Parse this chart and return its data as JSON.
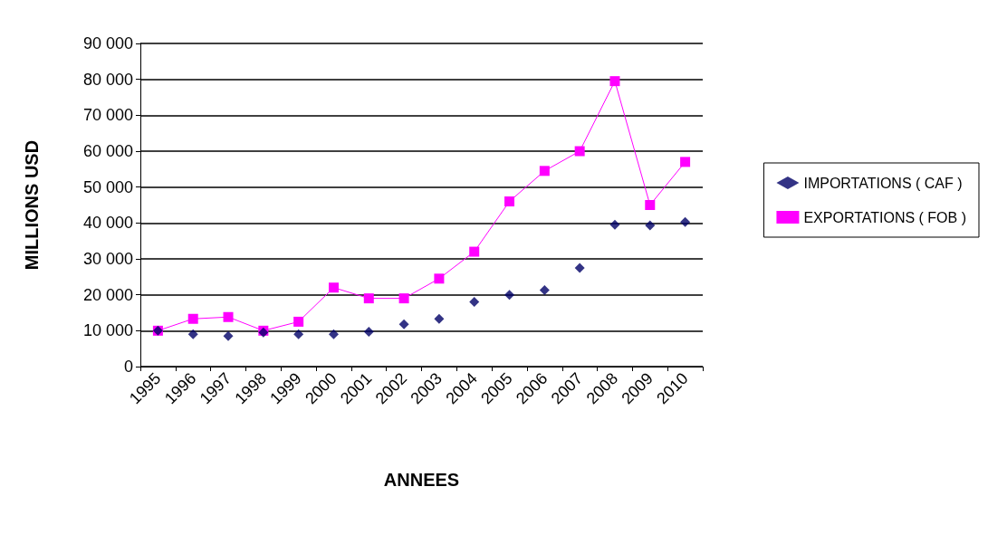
{
  "chart_data": {
    "type": "line",
    "xlabel": "ANNEES",
    "ylabel": "MILLIONS USD",
    "categories": [
      "1995",
      "1996",
      "1997",
      "1998",
      "1999",
      "2000",
      "2001",
      "2002",
      "2003",
      "2004",
      "2005",
      "2006",
      "2007",
      "2008",
      "2009",
      "2010"
    ],
    "series": [
      {
        "name": "IMPORTATIONS ( CAF )",
        "type": "scatter",
        "marker": "diamond",
        "color": "#000066",
        "values": [
          10000,
          9000,
          8500,
          9500,
          9000,
          9000,
          9700,
          11800,
          13300,
          18000,
          20000,
          21300,
          27500,
          39500,
          39300,
          40300
        ]
      },
      {
        "name": "EXPORTATIONS ( FOB )",
        "marker": "square",
        "color": "#ff00ff",
        "values": [
          10000,
          13300,
          13800,
          10000,
          12500,
          22000,
          19000,
          19000,
          24500,
          32000,
          46000,
          54500,
          60000,
          79500,
          45000,
          57000
        ]
      }
    ],
    "ylim": [
      0,
      90000
    ],
    "yticks": [
      0,
      {
        "value": 10000,
        "label": "10 000"
      },
      {
        "value": 20000,
        "label": "20 000"
      },
      {
        "value": 30000,
        "label": "30 000"
      },
      {
        "value": 40000,
        "label": "40 000"
      },
      {
        "value": 50000,
        "label": "50 000"
      },
      {
        "value": 60000,
        "label": "60 000"
      },
      {
        "value": 70000,
        "label": "70 000"
      },
      {
        "value": 80000,
        "label": "80 000"
      },
      {
        "value": 90000,
        "label": "90 000"
      }
    ],
    "grid": "y",
    "legend": "right"
  }
}
